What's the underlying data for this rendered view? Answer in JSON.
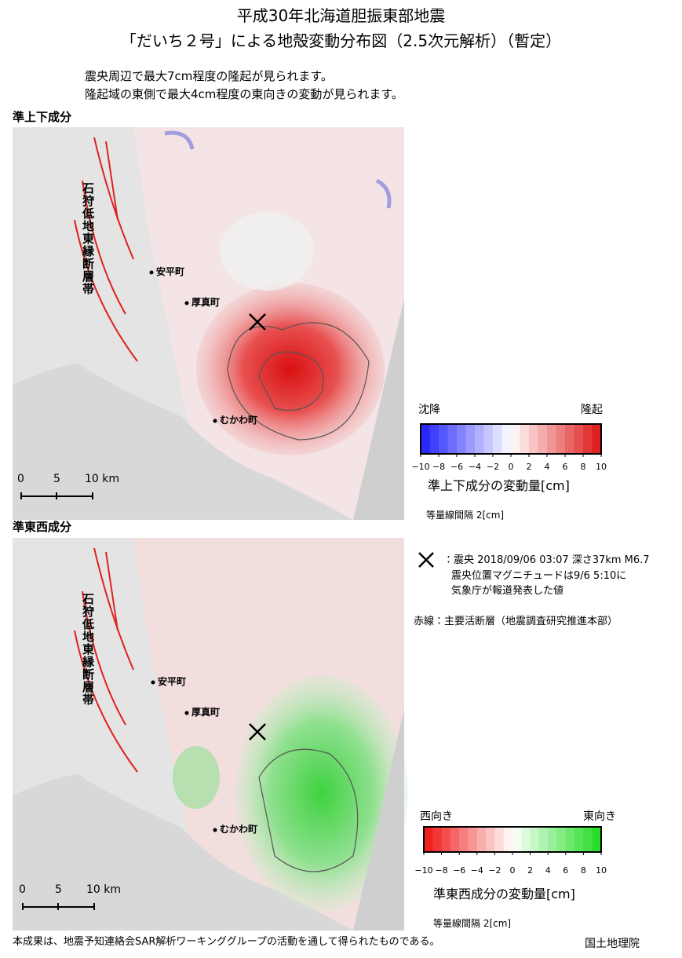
{
  "header": {
    "title_line1": "平成30年北海道胆振東部地震",
    "title_line2": "「だいち２号」による地殻変動分布図（2.5次元解析）（暫定）",
    "notes": [
      "震央周辺で最大7cm程度の隆起が見られます。",
      "隆起域の東側で最大4cm程度の東向きの変動が見られます。"
    ]
  },
  "panels": [
    {
      "label": "準上下成分",
      "fault_label": "石狩低地東縁断層帯",
      "places": [
        "安平町",
        "厚真町",
        "むかわ町"
      ],
      "scale_ticks": [
        "0",
        "5",
        "10 km"
      ]
    },
    {
      "label": "準東西成分",
      "fault_label": "石狩低地東縁断層帯",
      "places": [
        "安平町",
        "厚真町",
        "むかわ町"
      ],
      "scale_ticks": [
        "0",
        "5",
        "10 km"
      ]
    }
  ],
  "legend_updown": {
    "left": "沈降",
    "right": "隆起",
    "ticks": [
      "−10",
      "−8",
      "−6",
      "−4",
      "−2",
      "0",
      "2",
      "4",
      "6",
      "8",
      "10"
    ],
    "caption": "準上下成分の変動量[cm]",
    "interval": "等量線間隔 2[cm]"
  },
  "legend_ew": {
    "left": "西向き",
    "right": "東向き",
    "ticks": [
      "−10",
      "−8",
      "−6",
      "−4",
      "−2",
      "0",
      "2",
      "4",
      "6",
      "8",
      "10"
    ],
    "caption": "準東西成分の変動量[cm]",
    "interval": "等量線間隔 2[cm]"
  },
  "epicenter_note": [
    "：震央 2018/09/06 03:07 深さ37km M6.7",
    "震央位置マグニチュードは9/6 5:10に",
    "気象庁が報道発表した値"
  ],
  "fault_note": "赤線：主要活断層（地震調査研究推進本部）",
  "footer": {
    "credit": "本成果は、地震予知連絡会SAR解析ワーキンググループの活動を通して得られたものである。",
    "org": "国土地理院"
  }
}
